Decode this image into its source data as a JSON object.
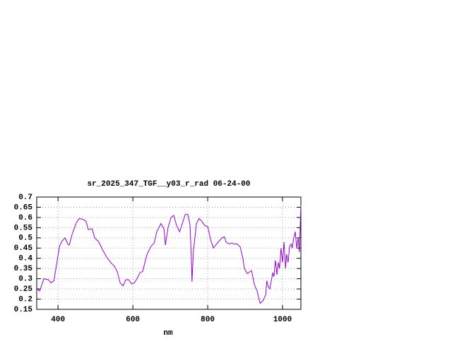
{
  "chart_data": {
    "type": "line",
    "title": "sr_2025_347_TGF__y03_r_rad 06-24-00",
    "x_label": "nm",
    "xlim": [
      343,
      1049
    ],
    "ylim": [
      0.15,
      0.7
    ],
    "xticks": [
      400,
      600,
      800,
      1000
    ],
    "yticks": [
      0.15,
      0.2,
      0.25,
      0.3,
      0.35,
      0.4,
      0.45,
      0.5,
      0.55,
      0.6,
      0.65,
      0.7
    ],
    "grid": true,
    "series": [
      {
        "color": "#9400d3",
        "x": [
          343,
          351,
          362,
          374,
          381,
          389,
          396,
          404,
          411,
          419,
          426,
          430,
          438,
          449,
          457,
          468,
          475,
          481,
          491,
          498,
          509,
          521,
          532,
          543,
          551,
          558,
          566,
          574,
          581,
          589,
          596,
          604,
          611,
          619,
          626,
          638,
          649,
          657,
          664,
          675,
          683,
          687,
          694,
          702,
          709,
          717,
          725,
          732,
          740,
          747,
          753,
          757,
          758,
          762,
          770,
          777,
          785,
          792,
          800,
          808,
          815,
          826,
          838,
          845,
          849,
          857,
          864,
          872,
          879,
          887,
          894,
          898,
          906,
          913,
          917,
          925,
          932,
          940,
          947,
          955,
          958,
          962,
          966,
          974,
          977,
          981,
          985,
          989,
          992,
          996,
          1000,
          1004,
          1008,
          1011,
          1015,
          1019,
          1023,
          1026,
          1030,
          1034,
          1038,
          1042,
          1045,
          1049
        ],
        "values": [
          0.25,
          0.24,
          0.3,
          0.295,
          0.28,
          0.29,
          0.37,
          0.46,
          0.485,
          0.5,
          0.47,
          0.465,
          0.52,
          0.575,
          0.595,
          0.59,
          0.58,
          0.54,
          0.545,
          0.5,
          0.48,
          0.435,
          0.4,
          0.375,
          0.36,
          0.335,
          0.28,
          0.265,
          0.295,
          0.295,
          0.275,
          0.28,
          0.3,
          0.33,
          0.335,
          0.42,
          0.46,
          0.475,
          0.53,
          0.57,
          0.545,
          0.465,
          0.55,
          0.6,
          0.61,
          0.56,
          0.53,
          0.57,
          0.615,
          0.615,
          0.56,
          0.36,
          0.285,
          0.44,
          0.57,
          0.595,
          0.58,
          0.56,
          0.555,
          0.49,
          0.45,
          0.475,
          0.5,
          0.505,
          0.48,
          0.47,
          0.475,
          0.47,
          0.47,
          0.455,
          0.4,
          0.35,
          0.325,
          0.335,
          0.34,
          0.27,
          0.24,
          0.18,
          0.19,
          0.22,
          0.29,
          0.26,
          0.25,
          0.33,
          0.31,
          0.39,
          0.32,
          0.38,
          0.35,
          0.45,
          0.38,
          0.48,
          0.35,
          0.42,
          0.38,
          0.46,
          0.47,
          0.45,
          0.5,
          0.53,
          0.45,
          0.5,
          0.43,
          0.66
        ]
      }
    ]
  }
}
